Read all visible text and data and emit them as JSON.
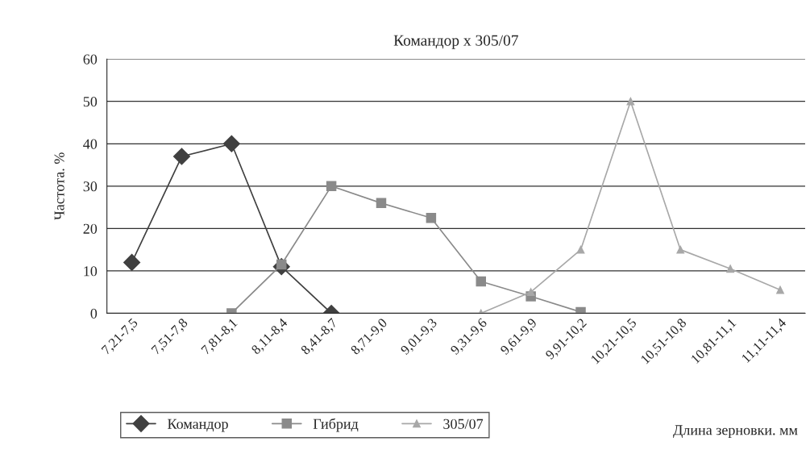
{
  "chart_data": {
    "type": "line",
    "title": "Командор x 305/07",
    "xlabel": "Длина зерновки. мм",
    "ylabel": "Частота. %",
    "categories": [
      "7,21-7,5",
      "7,51-7,8",
      "7,81-8,1",
      "8,11-8,4",
      "8,41-8,7",
      "8,71-9,0",
      "9,01-9,3",
      "9,31-9,6",
      "9,61-9,9",
      "9,91-10,2",
      "10,21-10,5",
      "10,51-10,8",
      "10,81-11,1",
      "11,11-11,4"
    ],
    "series": [
      {
        "name": "Командор",
        "color": "#404040",
        "marker": "diamond",
        "values": [
          12,
          37,
          40,
          11,
          0,
          null,
          null,
          null,
          null,
          null,
          null,
          null,
          null,
          null
        ]
      },
      {
        "name": "Гибрид",
        "color": "#8a8a8a",
        "marker": "square",
        "values": [
          null,
          null,
          0,
          11.5,
          30,
          26,
          22.5,
          7.5,
          4,
          0.3,
          null,
          null,
          null,
          null
        ]
      },
      {
        "name": "305/07",
        "color": "#a8a8a8",
        "marker": "triangle",
        "values": [
          null,
          null,
          null,
          null,
          null,
          null,
          null,
          0,
          5,
          15,
          50,
          15,
          10.5,
          5.5
        ]
      }
    ],
    "ylim": [
      0,
      60
    ],
    "yticks": [
      0,
      10,
      20,
      30,
      40,
      50,
      60
    ],
    "grid": "y",
    "legend": "bottom"
  }
}
